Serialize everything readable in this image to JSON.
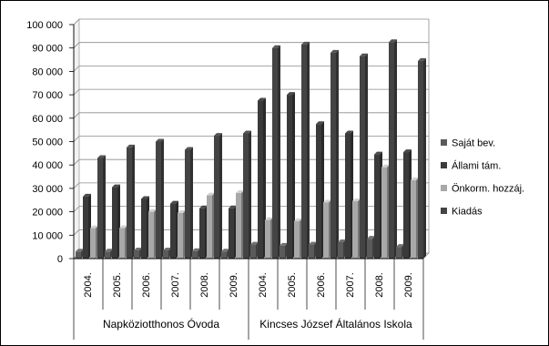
{
  "chart_data": {
    "type": "bar",
    "title": "",
    "xlabel": "",
    "ylabel": "",
    "ylim": [
      0,
      100000
    ],
    "yticks": [
      0,
      10000,
      20000,
      30000,
      40000,
      50000,
      60000,
      70000,
      80000,
      90000,
      100000
    ],
    "ytick_labels": [
      "0",
      "10 000",
      "20 000",
      "30 000",
      "40 000",
      "50 000",
      "60 000",
      "70 000",
      "80 000",
      "90 000",
      "100 000"
    ],
    "grid": true,
    "legend_position": "right",
    "groups": [
      {
        "label": "Napköziotthonos Óvoda",
        "years": [
          "2004.",
          "2005.",
          "2006.",
          "2007.",
          "2008.",
          "2009."
        ]
      },
      {
        "label": "Kincses József Általános Iskola",
        "years": [
          "2004.",
          "2005.",
          "2006.",
          "2007.",
          "2008.",
          "2009."
        ]
      }
    ],
    "categories": [
      "2004.",
      "2005.",
      "2006.",
      "2007.",
      "2008.",
      "2009.",
      "2004.",
      "2005.",
      "2006.",
      "2007.",
      "2008.",
      "2009."
    ],
    "series": [
      {
        "name": "Saját bev.",
        "color": "#5a5a5a",
        "values": [
          3000,
          3000,
          3500,
          3500,
          3200,
          3000,
          6000,
          5500,
          6000,
          7000,
          8500,
          5000
        ]
      },
      {
        "name": "Állami tám.",
        "color": "#3a3a3a",
        "values": [
          26500,
          30500,
          25500,
          23500,
          21500,
          21500,
          67500,
          70000,
          57500,
          53500,
          44500,
          45500
        ]
      },
      {
        "name": "Önkorm. hozzáj.",
        "color": "#a8a8a8",
        "values": [
          13000,
          13000,
          20000,
          19500,
          27000,
          28000,
          16500,
          16000,
          24000,
          24500,
          39000,
          33500
        ]
      },
      {
        "name": "Kiadás",
        "color": "#444444",
        "values": [
          43000,
          47500,
          50000,
          46500,
          52500,
          53500,
          90000,
          91500,
          88000,
          86500,
          92500,
          84500
        ]
      }
    ]
  }
}
